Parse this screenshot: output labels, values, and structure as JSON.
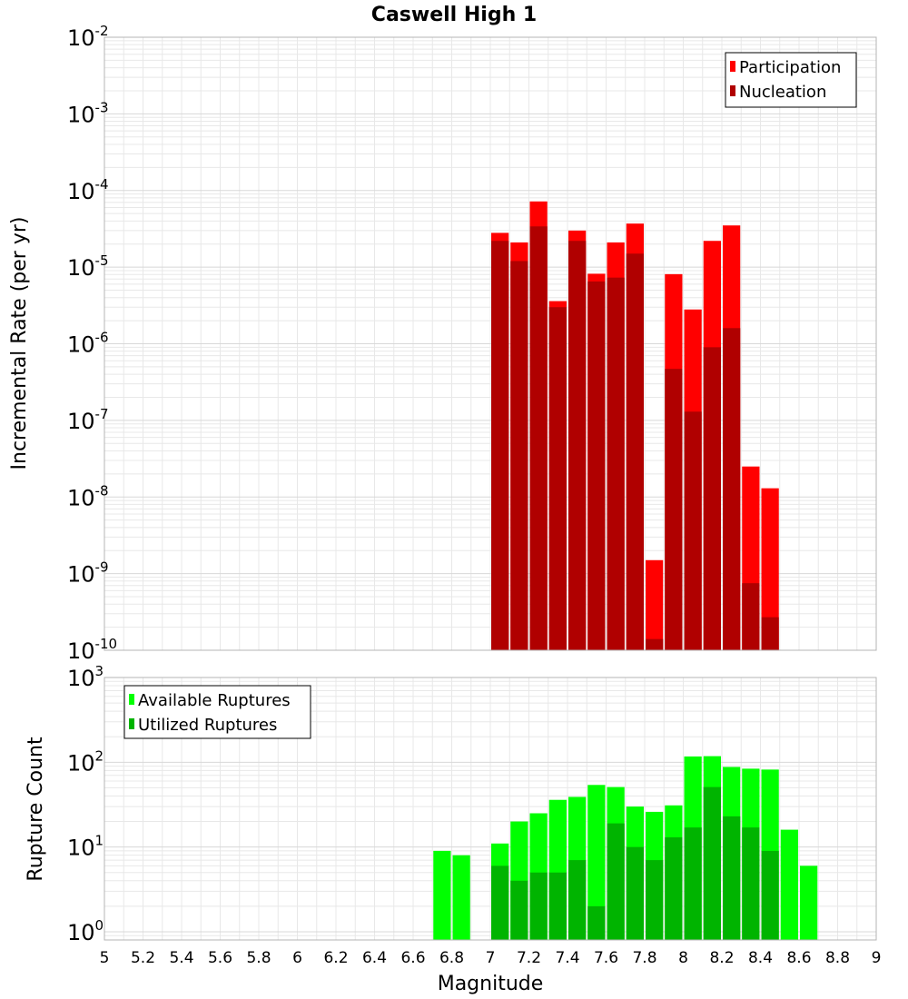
{
  "title": "Caswell High 1",
  "xlabel": "Magnitude",
  "x_ticks": [
    "5",
    "5.2",
    "5.4",
    "5.6",
    "5.8",
    "6",
    "6.2",
    "6.4",
    "6.6",
    "6.8",
    "7",
    "7.2",
    "7.4",
    "7.6",
    "7.8",
    "8",
    "8.2",
    "8.4",
    "8.6",
    "8.8",
    "9"
  ],
  "colors": {
    "participation": "#ff0000",
    "nucleation": "#b00000",
    "available": "#00ff00",
    "utilized": "#00b400",
    "grid": "#e8e8e8",
    "frame": "#b4b4b4"
  },
  "chart_data": [
    {
      "type": "bar",
      "panel": "top",
      "ylabel": "Incremental Rate (per yr)",
      "xlim": [
        5,
        9
      ],
      "ylim": [
        1e-10,
        0.01
      ],
      "yscale": "log",
      "y_tick_exponents": [
        -2,
        -3,
        -4,
        -5,
        -6,
        -7,
        -8,
        -9,
        -10
      ],
      "bar_width": 0.1,
      "grid": true,
      "legend_position": "top-right",
      "x": [
        7.05,
        7.15,
        7.25,
        7.35,
        7.45,
        7.55,
        7.65,
        7.75,
        7.85,
        7.95,
        8.05,
        8.15,
        8.25,
        8.35,
        8.45
      ],
      "series": [
        {
          "name": "Participation",
          "color_key": "participation",
          "values": [
            2.8e-05,
            2.1e-05,
            7.2e-05,
            3.6e-06,
            3e-05,
            8.2e-06,
            2.1e-05,
            3.7e-05,
            1.5e-09,
            8.1e-06,
            2.8e-06,
            2.2e-05,
            3.5e-05,
            2.5e-08,
            1.3e-08
          ]
        },
        {
          "name": "Nucleation",
          "color_key": "nucleation",
          "values": [
            2.2e-05,
            1.2e-05,
            3.4e-05,
            3e-06,
            2.2e-05,
            6.5e-06,
            7.3e-06,
            1.5e-05,
            1.4e-10,
            4.7e-07,
            1.3e-07,
            9e-07,
            1.6e-06,
            7.5e-10,
            2.7e-10
          ]
        }
      ]
    },
    {
      "type": "bar",
      "panel": "bottom",
      "ylabel": "Rupture Count",
      "xlim": [
        5,
        9
      ],
      "ylim": [
        0.8,
        1000
      ],
      "yscale": "log",
      "y_tick_exponents": [
        3,
        2,
        1,
        0
      ],
      "bar_width": 0.1,
      "grid": true,
      "legend_position": "top-left",
      "series": [
        {
          "name": "Available Ruptures",
          "color_key": "available",
          "x": [
            6.75,
            6.85,
            7.05,
            7.15,
            7.25,
            7.35,
            7.45,
            7.55,
            7.65,
            7.75,
            7.85,
            7.95,
            8.05,
            8.15,
            8.25,
            8.35,
            8.45,
            8.55,
            8.65
          ],
          "values": [
            9,
            8,
            11,
            20,
            25,
            36,
            39,
            54,
            51,
            30,
            26,
            31,
            117,
            118,
            88,
            84,
            82,
            16,
            6
          ]
        },
        {
          "name": "Utilized Ruptures",
          "color_key": "utilized",
          "x": [
            7.05,
            7.15,
            7.25,
            7.35,
            7.45,
            7.55,
            7.65,
            7.75,
            7.85,
            7.95,
            8.05,
            8.15,
            8.25,
            8.35,
            8.45
          ],
          "values": [
            6,
            4,
            5,
            5,
            7,
            2,
            19,
            10,
            7,
            13,
            17,
            51,
            23,
            17,
            9
          ]
        }
      ]
    }
  ]
}
